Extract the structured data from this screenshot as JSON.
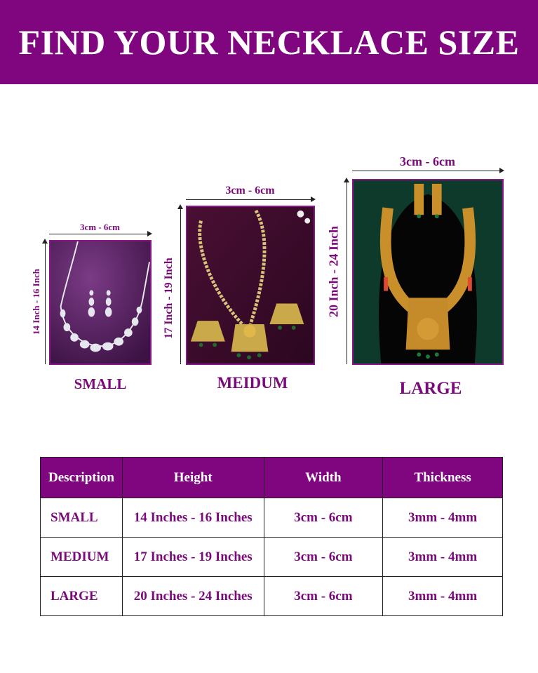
{
  "header": {
    "title": "FIND YOUR NECKLACE SIZE"
  },
  "colors": {
    "brand_purple": "#7f067f",
    "text_purple": "#7a0a7a"
  },
  "sizes": [
    {
      "name": "SMALL",
      "width_label": "3cm - 6cm",
      "height_label": "14 Inch - 16 Inch",
      "image": "silver-diamond-necklace"
    },
    {
      "name": "MEIDUM",
      "width_label": "3cm - 6cm",
      "height_label": "17 Inch - 19 Inch",
      "image": "gold-long-necklace"
    },
    {
      "name": "LARGE",
      "width_label": "3cm - 6cm",
      "height_label": "20 Inch - 24 Inch",
      "image": "gold-temple-haram"
    }
  ],
  "table": {
    "headers": [
      "Description",
      "Height",
      "Width",
      "Thickness"
    ],
    "rows": [
      [
        "SMALL",
        "14 Inches - 16 Inches",
        "3cm - 6cm",
        "3mm - 4mm"
      ],
      [
        "MEDIUM",
        "17 Inches - 19 Inches",
        "3cm - 6cm",
        "3mm - 4mm"
      ],
      [
        "LARGE",
        "20 Inches - 24 Inches",
        "3cm - 6cm",
        "3mm - 4mm"
      ]
    ]
  }
}
